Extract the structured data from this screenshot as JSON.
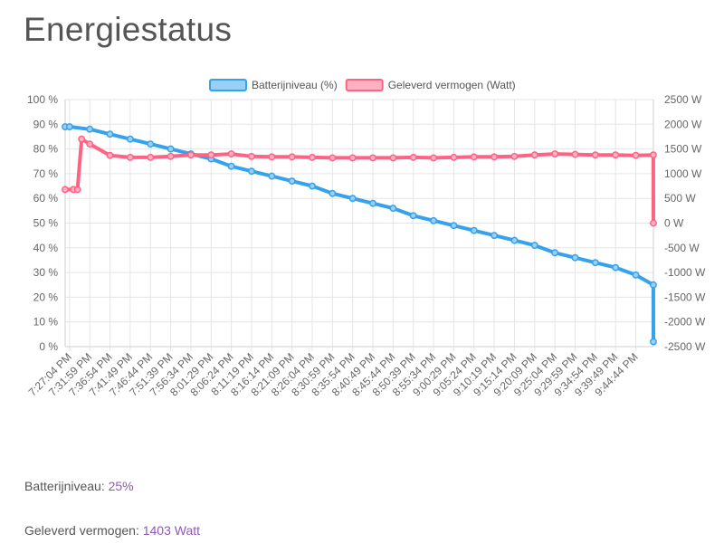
{
  "page": {
    "title": "Energiestatus"
  },
  "stats": {
    "battery_label": "Batterijniveau:",
    "battery_value": "25%",
    "power_label": "Geleverd vermogen:",
    "power_value": "1403 Watt"
  },
  "colors": {
    "battery": "#36a2eb",
    "power": "#ff6384",
    "battery_fill": "#9ad0f5",
    "power_fill": "#ffb1c1",
    "grid": "#e5e5e5"
  },
  "chart_data": {
    "type": "line",
    "legend_position": "top",
    "grid": true,
    "x_tick_labels": [
      "7:27:04 PM",
      "7:31:59 PM",
      "7:36:54 PM",
      "7:41:49 PM",
      "7:46:44 PM",
      "7:51:39 PM",
      "7:56:34 PM",
      "8:01:29 PM",
      "8:06:24 PM",
      "8:11:19 PM",
      "8:16:14 PM",
      "8:21:09 PM",
      "8:26:04 PM",
      "8:30:59 PM",
      "8:35:54 PM",
      "8:40:49 PM",
      "8:45:44 PM",
      "8:50:39 PM",
      "8:55:34 PM",
      "9:00:29 PM",
      "9:05:24 PM",
      "9:10:19 PM",
      "9:15:14 PM",
      "9:20:09 PM",
      "9:25:04 PM",
      "9:29:59 PM",
      "9:34:54 PM",
      "9:39:49 PM",
      "9:44:44 PM"
    ],
    "y_left": {
      "label": "",
      "ticks": [
        "0 %",
        "10 %",
        "20 %",
        "30 %",
        "40 %",
        "50 %",
        "60 %",
        "70 %",
        "80 %",
        "90 %",
        "100 %"
      ],
      "range": [
        0,
        100
      ]
    },
    "y_right": {
      "label": "",
      "ticks": [
        "-2500 W",
        "-2000 W",
        "-1500 W",
        "-1000 W",
        "-500 W",
        "0 W",
        "500 W",
        "1000 W",
        "1500 W",
        "2000 W",
        "2500 W"
      ],
      "range": [
        -2500,
        2500
      ]
    },
    "series": [
      {
        "name": "Batterijniveau (%)",
        "axis": "left",
        "x": [
          "7:26:00 PM",
          "7:27:04 PM",
          "7:31:59 PM",
          "7:36:54 PM",
          "7:41:49 PM",
          "7:46:44 PM",
          "7:51:39 PM",
          "7:56:34 PM",
          "8:01:29 PM",
          "8:06:24 PM",
          "8:11:19 PM",
          "8:16:14 PM",
          "8:21:09 PM",
          "8:26:04 PM",
          "8:30:59 PM",
          "8:35:54 PM",
          "8:40:49 PM",
          "8:45:44 PM",
          "8:50:39 PM",
          "8:55:34 PM",
          "9:00:29 PM",
          "9:05:24 PM",
          "9:10:19 PM",
          "9:15:14 PM",
          "9:20:09 PM",
          "9:25:04 PM",
          "9:29:59 PM",
          "9:34:54 PM",
          "9:39:49 PM",
          "9:44:44 PM",
          "9:49:00 PM",
          "9:49:01 PM"
        ],
        "values": [
          89,
          89,
          88,
          86,
          84,
          82,
          80,
          78,
          76,
          73,
          71,
          69,
          67,
          65,
          62,
          60,
          58,
          56,
          53,
          51,
          49,
          47,
          45,
          43,
          41,
          38,
          36,
          34,
          32,
          29,
          25,
          2
        ]
      },
      {
        "name": "Geleverd vermogen (Watt)",
        "axis": "right",
        "x": [
          "7:26:00 PM",
          "7:28:00 PM",
          "7:29:00 PM",
          "7:30:00 PM",
          "7:31:59 PM",
          "7:36:54 PM",
          "7:41:49 PM",
          "7:46:44 PM",
          "7:51:39 PM",
          "7:56:34 PM",
          "8:01:29 PM",
          "8:06:24 PM",
          "8:11:19 PM",
          "8:16:14 PM",
          "8:21:09 PM",
          "8:26:04 PM",
          "8:30:59 PM",
          "8:35:54 PM",
          "8:40:49 PM",
          "8:45:44 PM",
          "8:50:39 PM",
          "8:55:34 PM",
          "9:00:29 PM",
          "9:05:24 PM",
          "9:10:19 PM",
          "9:15:14 PM",
          "9:20:09 PM",
          "9:25:04 PM",
          "9:29:59 PM",
          "9:34:54 PM",
          "9:39:49 PM",
          "9:44:44 PM",
          "9:49:00 PM",
          "9:49:01 PM"
        ],
        "values": [
          680,
          680,
          680,
          1700,
          1600,
          1370,
          1330,
          1330,
          1350,
          1380,
          1380,
          1400,
          1350,
          1340,
          1340,
          1330,
          1320,
          1320,
          1320,
          1320,
          1330,
          1320,
          1330,
          1340,
          1340,
          1350,
          1380,
          1400,
          1390,
          1380,
          1380,
          1370,
          1380,
          0
        ]
      }
    ]
  }
}
